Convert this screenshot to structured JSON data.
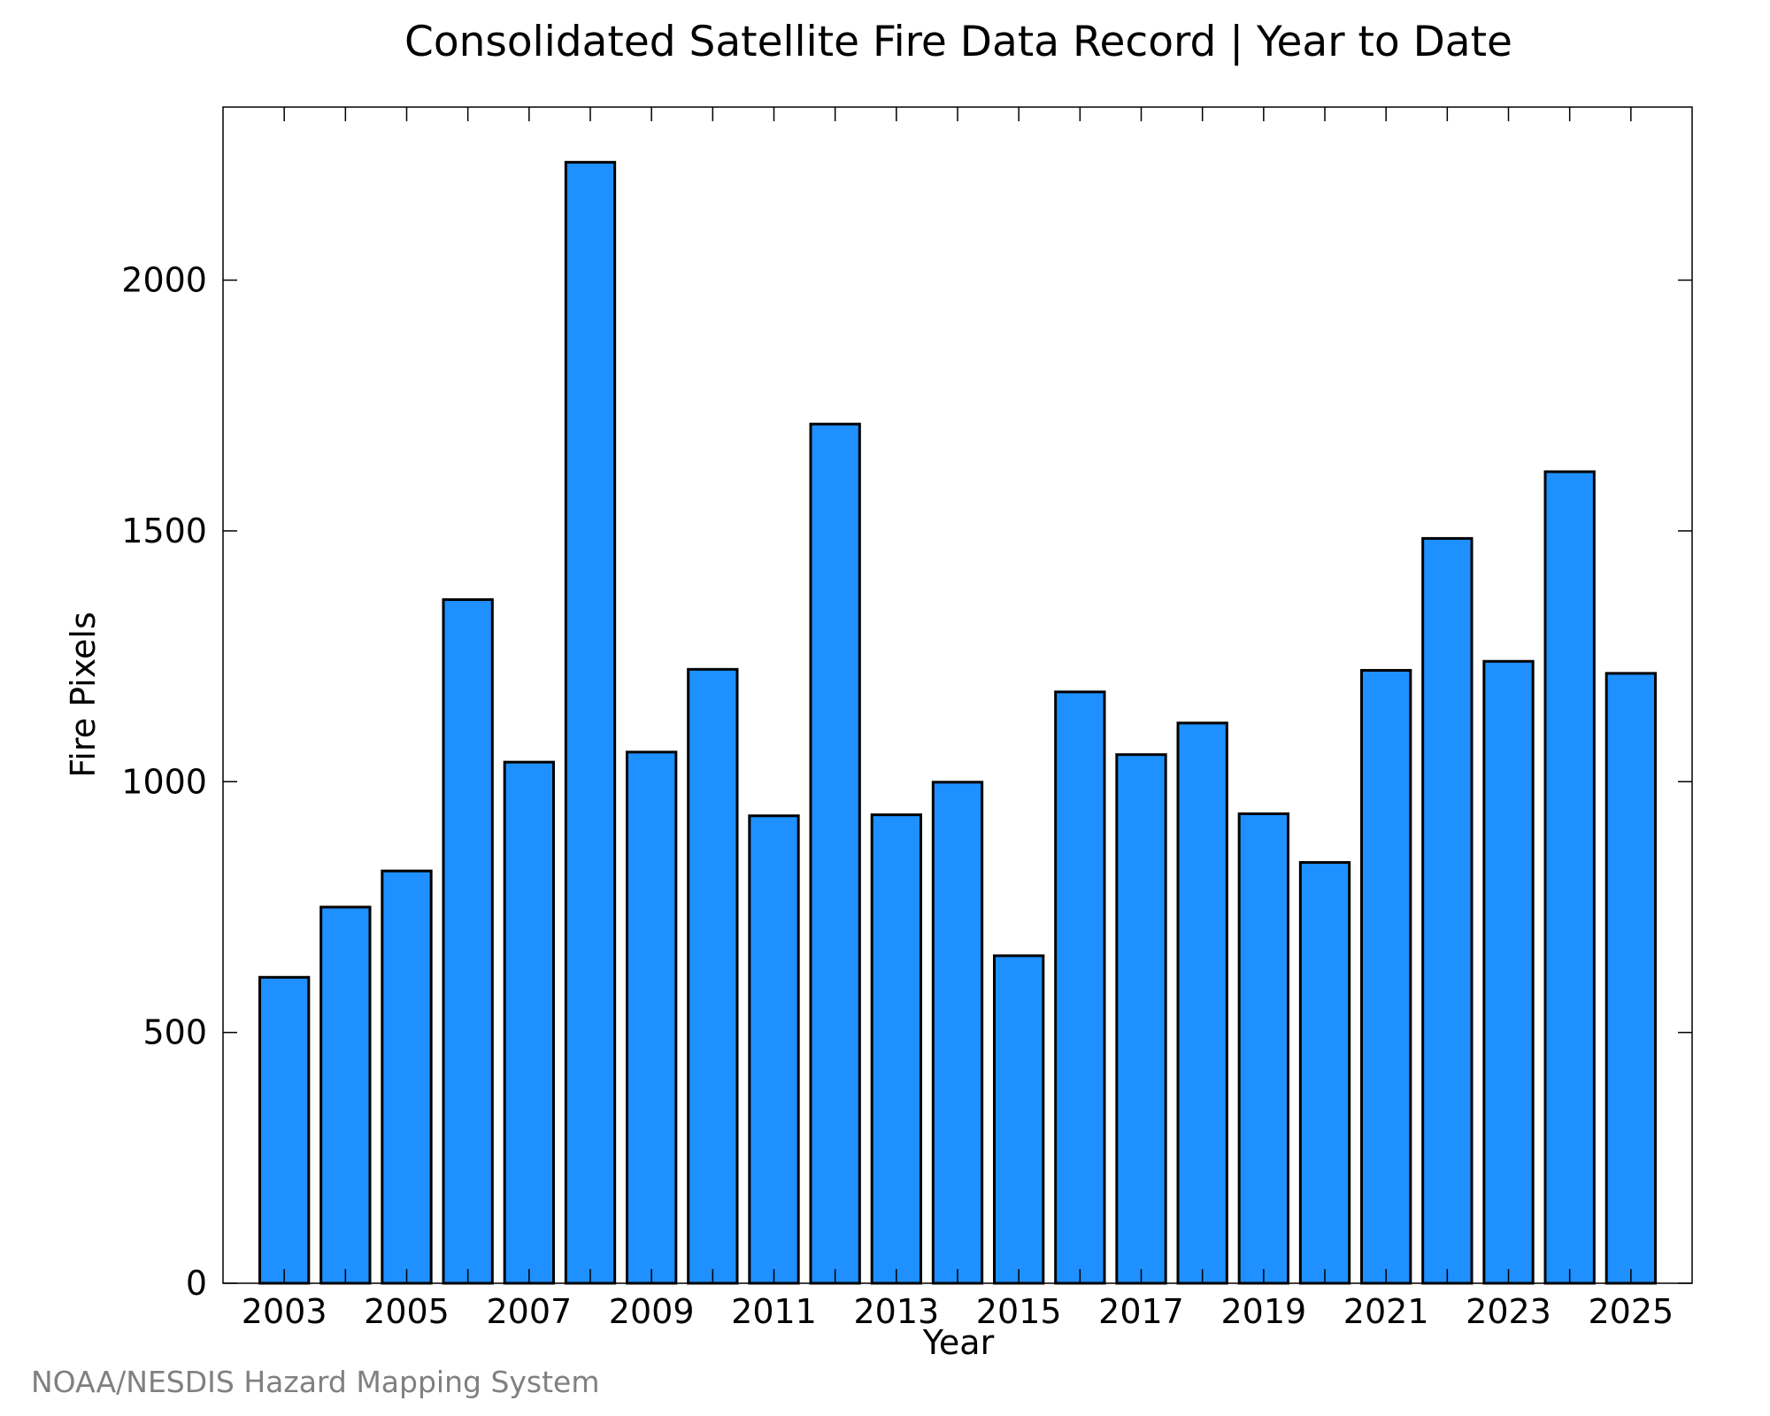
{
  "chart_data": {
    "type": "bar",
    "title": "Consolidated Satellite Fire Data Record | Year to Date",
    "xlabel": "Year",
    "ylabel": "Fire Pixels",
    "categories": [
      "2003",
      "2004",
      "2005",
      "2006",
      "2007",
      "2008",
      "2009",
      "2010",
      "2011",
      "2012",
      "2013",
      "2014",
      "2015",
      "2016",
      "2017",
      "2018",
      "2019",
      "2020",
      "2021",
      "2022",
      "2023",
      "2024",
      "2025"
    ],
    "values": [
      610,
      750,
      822,
      1363,
      1039,
      2235,
      1059,
      1224,
      932,
      1713,
      934,
      999,
      653,
      1179,
      1054,
      1117,
      936,
      839,
      1222,
      1485,
      1240,
      1618,
      1216
    ],
    "x_tick_labels": [
      "2003",
      "2005",
      "2007",
      "2009",
      "2011",
      "2013",
      "2015",
      "2017",
      "2019",
      "2021",
      "2023",
      "2025"
    ],
    "y_tick_labels": [
      "0",
      "500",
      "1000",
      "1500",
      "2000"
    ],
    "ylim": [
      0,
      2345
    ],
    "grid": false,
    "legend": "none",
    "bar_color": "#1e90ff",
    "edge_color": "#000000"
  },
  "source_label": "NOAA/NESDIS Hazard Mapping System",
  "colors": {
    "source_text": "#808080"
  }
}
